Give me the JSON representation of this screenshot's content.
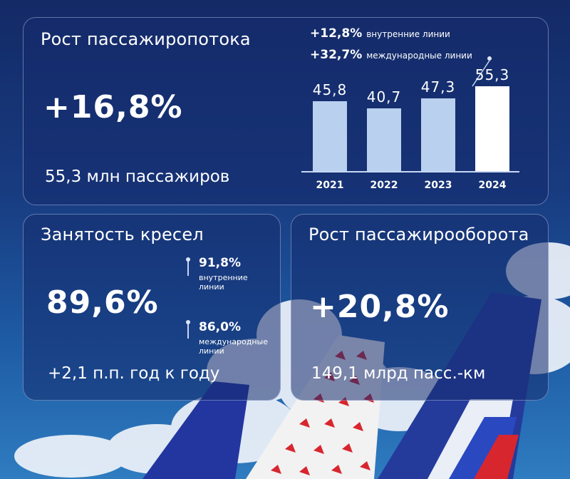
{
  "pax_card": {
    "title": "Рост пассажиропотока",
    "growth": "+16,8%",
    "total": "55,3 млн пассажиров",
    "domestic": {
      "value": "+12,8%",
      "label": "внутренние линии"
    },
    "international": {
      "value": "+32,7%",
      "label": "международные линии"
    }
  },
  "chart_data": {
    "type": "bar",
    "categories": [
      "2021",
      "2022",
      "2023",
      "2024"
    ],
    "values": [
      45.8,
      40.7,
      47.3,
      55.3
    ],
    "value_labels": [
      "45,8",
      "40,7",
      "47,3",
      "55,3"
    ],
    "highlight_index": 3,
    "colors": {
      "bar": "#b9d0ee",
      "highlight": "#ffffff"
    },
    "ylim": [
      0,
      60
    ]
  },
  "load_card": {
    "title": "Занятость кресел",
    "value": "89,6%",
    "change": "+2,1 п.п. год к году",
    "domestic": {
      "value": "91,8%",
      "label": "внутренние линии"
    },
    "international": {
      "value": "86,0%",
      "label": "международные линии"
    }
  },
  "rpk_card": {
    "title": "Рост пассажирооборота",
    "growth": "+20,8%",
    "total": "149,1 млрд пасс.-км"
  },
  "colors": {
    "card_bg": "#1a3270",
    "card_border": "#aebfe6",
    "tail_blue": "#2b3fa8",
    "tail_red": "#d8262f"
  }
}
